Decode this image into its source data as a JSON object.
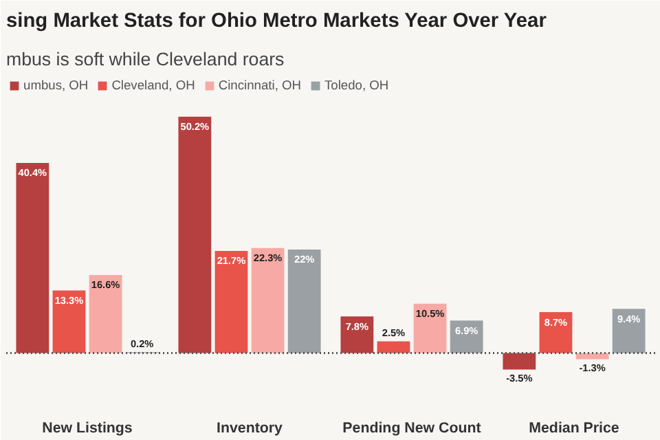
{
  "chart_data": {
    "type": "bar",
    "title": "sing Market Stats for Ohio Metro Markets Year Over Year",
    "subtitle": "mbus is soft while Cleveland roars",
    "categories": [
      "New Listings",
      "Inventory",
      "Pending New Count",
      "Median Price"
    ],
    "series": [
      {
        "name": "umbus, OH",
        "color": "#b5403f",
        "values": [
          40.4,
          50.2,
          7.8,
          -3.5
        ],
        "value_labels": [
          "40.4%",
          "50.2%",
          "7.8%",
          "-3.5%"
        ]
      },
      {
        "name": "Cleveland, OH",
        "color": "#e8534a",
        "values": [
          13.3,
          21.7,
          2.5,
          8.7
        ],
        "value_labels": [
          "13.3%",
          "21.7%",
          "2.5%",
          "8.7%"
        ]
      },
      {
        "name": "Cincinnati, OH",
        "color": "#f7aaa5",
        "values": [
          16.6,
          22.3,
          10.5,
          -1.3
        ],
        "value_labels": [
          "16.6%",
          "22.3%",
          "10.5%",
          "-1.3%"
        ]
      },
      {
        "name": "Toledo, OH",
        "color": "#9aa0a3",
        "values": [
          0.2,
          22,
          6.9,
          9.4
        ],
        "value_labels": [
          "0.2%",
          "22%",
          "6.9%",
          "9.4%"
        ]
      }
    ],
    "ref_lines": [
      {
        "axis": "y",
        "value": 0,
        "color": "#555555",
        "line_style": "dotted"
      }
    ],
    "legend": "top left"
  }
}
